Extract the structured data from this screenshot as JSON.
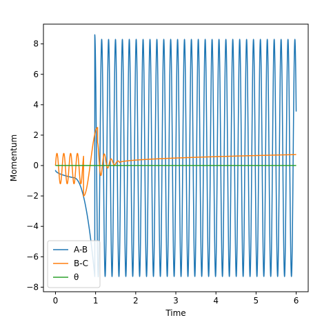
{
  "chart_data": {
    "type": "line",
    "title": "",
    "xlabel": "Time",
    "ylabel": "Momentum",
    "xlim": [
      -0.3,
      6.3
    ],
    "ylim": [
      -8.3,
      9.3
    ],
    "x_ticks": [
      0,
      1,
      2,
      3,
      4,
      5,
      6
    ],
    "y_ticks": [
      -8,
      -6,
      -4,
      -2,
      0,
      2,
      4,
      6,
      8
    ],
    "grid": false,
    "legend_position": "lower-left",
    "series": [
      {
        "name": "A-B",
        "color": "#1f77b4",
        "segments": [
          {
            "t_start": 0.0,
            "t_end": 0.45,
            "shape": "ramp",
            "from": -0.3,
            "to": -0.8
          },
          {
            "t_start": 0.45,
            "t_end": 0.98,
            "shape": "ramp",
            "from": -0.8,
            "to": -7.3
          },
          {
            "t_start": 0.98,
            "t_end": 6.0,
            "shape": "oscillation",
            "period": 0.172,
            "peak": 8.3,
            "trough": -7.3,
            "start_value": 8.6,
            "end_value": 3.1
          }
        ]
      },
      {
        "name": "B-C",
        "color": "#ff7f0e",
        "segments": [
          {
            "t_start": 0.0,
            "t_end": 0.7,
            "shape": "oscillation",
            "period": 0.17,
            "peak": 0.8,
            "trough": -1.2,
            "start_value": 0.0
          },
          {
            "t_start": 0.7,
            "t_end": 1.05,
            "shape": "swing",
            "from": -2.0,
            "to": 2.5
          },
          {
            "t_start": 1.05,
            "t_end": 1.6,
            "shape": "damped",
            "center": 0.2,
            "amplitude": 1.3,
            "period": 0.17
          },
          {
            "t_start": 1.6,
            "t_end": 6.0,
            "shape": "ramp",
            "from": 0.2,
            "to": 0.72
          }
        ]
      },
      {
        "name": "θ",
        "color": "#2ca02c",
        "segments": [
          {
            "t_start": 0.0,
            "t_end": 6.0,
            "shape": "constant",
            "value": 0.0
          }
        ]
      }
    ]
  }
}
